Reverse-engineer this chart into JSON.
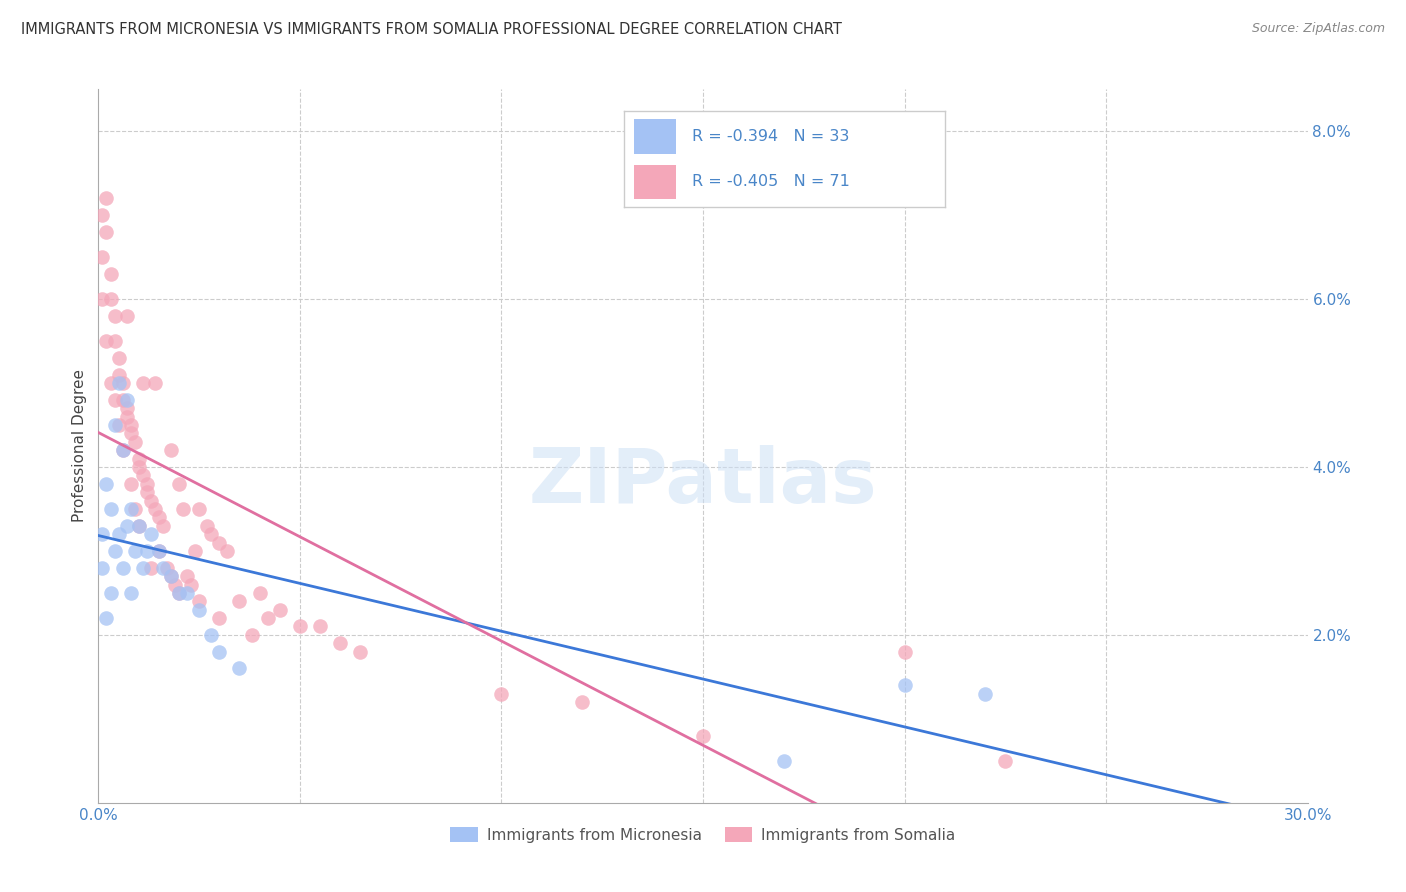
{
  "title": "IMMIGRANTS FROM MICRONESIA VS IMMIGRANTS FROM SOMALIA PROFESSIONAL DEGREE CORRELATION CHART",
  "source": "Source: ZipAtlas.com",
  "ylabel": "Professional Degree",
  "xlim": [
    0.0,
    0.3
  ],
  "ylim": [
    0.0,
    0.085
  ],
  "blue_color": "#a4c2f4",
  "pink_color": "#f4a7b9",
  "blue_line_color": "#3c78d8",
  "pink_line_color": "#e06fa0",
  "tick_color": "#4a86c8",
  "grid_color": "#cccccc",
  "mic_x": [
    0.001,
    0.001,
    0.002,
    0.002,
    0.003,
    0.003,
    0.004,
    0.004,
    0.005,
    0.005,
    0.006,
    0.006,
    0.007,
    0.007,
    0.008,
    0.008,
    0.009,
    0.01,
    0.011,
    0.012,
    0.013,
    0.015,
    0.016,
    0.018,
    0.02,
    0.022,
    0.025,
    0.028,
    0.03,
    0.035,
    0.2,
    0.22,
    0.17
  ],
  "mic_y": [
    0.032,
    0.028,
    0.038,
    0.022,
    0.035,
    0.025,
    0.045,
    0.03,
    0.05,
    0.032,
    0.042,
    0.028,
    0.048,
    0.033,
    0.035,
    0.025,
    0.03,
    0.033,
    0.028,
    0.03,
    0.032,
    0.03,
    0.028,
    0.027,
    0.025,
    0.025,
    0.023,
    0.02,
    0.018,
    0.016,
    0.014,
    0.013,
    0.005
  ],
  "som_x": [
    0.001,
    0.001,
    0.001,
    0.002,
    0.002,
    0.002,
    0.003,
    0.003,
    0.003,
    0.004,
    0.004,
    0.004,
    0.005,
    0.005,
    0.005,
    0.006,
    0.006,
    0.006,
    0.007,
    0.007,
    0.007,
    0.008,
    0.008,
    0.008,
    0.009,
    0.009,
    0.01,
    0.01,
    0.01,
    0.011,
    0.011,
    0.012,
    0.012,
    0.013,
    0.013,
    0.014,
    0.014,
    0.015,
    0.015,
    0.016,
    0.017,
    0.018,
    0.018,
    0.019,
    0.02,
    0.02,
    0.021,
    0.022,
    0.023,
    0.024,
    0.025,
    0.025,
    0.027,
    0.028,
    0.03,
    0.03,
    0.032,
    0.035,
    0.038,
    0.04,
    0.042,
    0.045,
    0.05,
    0.055,
    0.06,
    0.065,
    0.1,
    0.12,
    0.15,
    0.2,
    0.225
  ],
  "som_y": [
    0.065,
    0.07,
    0.06,
    0.072,
    0.068,
    0.055,
    0.063,
    0.06,
    0.05,
    0.058,
    0.055,
    0.048,
    0.053,
    0.051,
    0.045,
    0.05,
    0.048,
    0.042,
    0.047,
    0.046,
    0.058,
    0.045,
    0.044,
    0.038,
    0.043,
    0.035,
    0.041,
    0.04,
    0.033,
    0.039,
    0.05,
    0.038,
    0.037,
    0.036,
    0.028,
    0.035,
    0.05,
    0.034,
    0.03,
    0.033,
    0.028,
    0.042,
    0.027,
    0.026,
    0.038,
    0.025,
    0.035,
    0.027,
    0.026,
    0.03,
    0.035,
    0.024,
    0.033,
    0.032,
    0.031,
    0.022,
    0.03,
    0.024,
    0.02,
    0.025,
    0.022,
    0.023,
    0.021,
    0.021,
    0.019,
    0.018,
    0.013,
    0.012,
    0.008,
    0.018,
    0.005
  ]
}
